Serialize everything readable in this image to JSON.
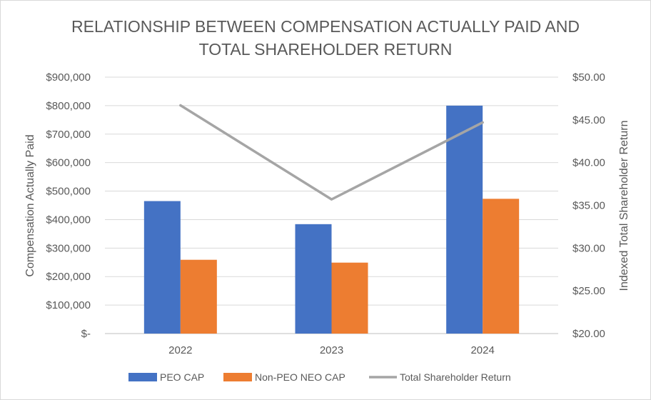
{
  "chart_data": {
    "type": "bar",
    "title_lines": [
      "RELATIONSHIP BETWEEN COMPENSATION ACTUALLY PAID AND",
      "TOTAL SHAREHOLDER RETURN"
    ],
    "categories": [
      "2022",
      "2023",
      "2024"
    ],
    "series": [
      {
        "name": "PEO CAP",
        "type": "bar",
        "axis": "left",
        "color": "#4472C4",
        "values": [
          465000,
          384000,
          800000
        ]
      },
      {
        "name": "Non-PEO NEO CAP",
        "type": "bar",
        "axis": "left",
        "color": "#ED7D31",
        "values": [
          259000,
          249000,
          473000
        ]
      },
      {
        "name": "Total Shareholder Return",
        "type": "line",
        "axis": "right",
        "color": "#A5A5A5",
        "values": [
          46.7,
          35.7,
          44.7
        ]
      }
    ],
    "ylabel": "Compensation Actually Paid",
    "y2label": "Indexed Total Shareholder Return",
    "ylim": [
      0,
      900000
    ],
    "y2lim": [
      20,
      50
    ],
    "yticks": [
      0,
      100000,
      200000,
      300000,
      400000,
      500000,
      600000,
      700000,
      800000,
      900000
    ],
    "ytick_labels": [
      "$-",
      "$100,000",
      "$200,000",
      "$300,000",
      "$400,000",
      "$500,000",
      "$600,000",
      "$700,000",
      "$800,000",
      "$900,000"
    ],
    "y2ticks": [
      20,
      25,
      30,
      35,
      40,
      45,
      50
    ],
    "y2tick_labels": [
      "$20.00",
      "$25.00",
      "$30.00",
      "$35.00",
      "$40.00",
      "$45.00",
      "$50.00"
    ],
    "gridlines": true,
    "legend_position": "bottom"
  }
}
